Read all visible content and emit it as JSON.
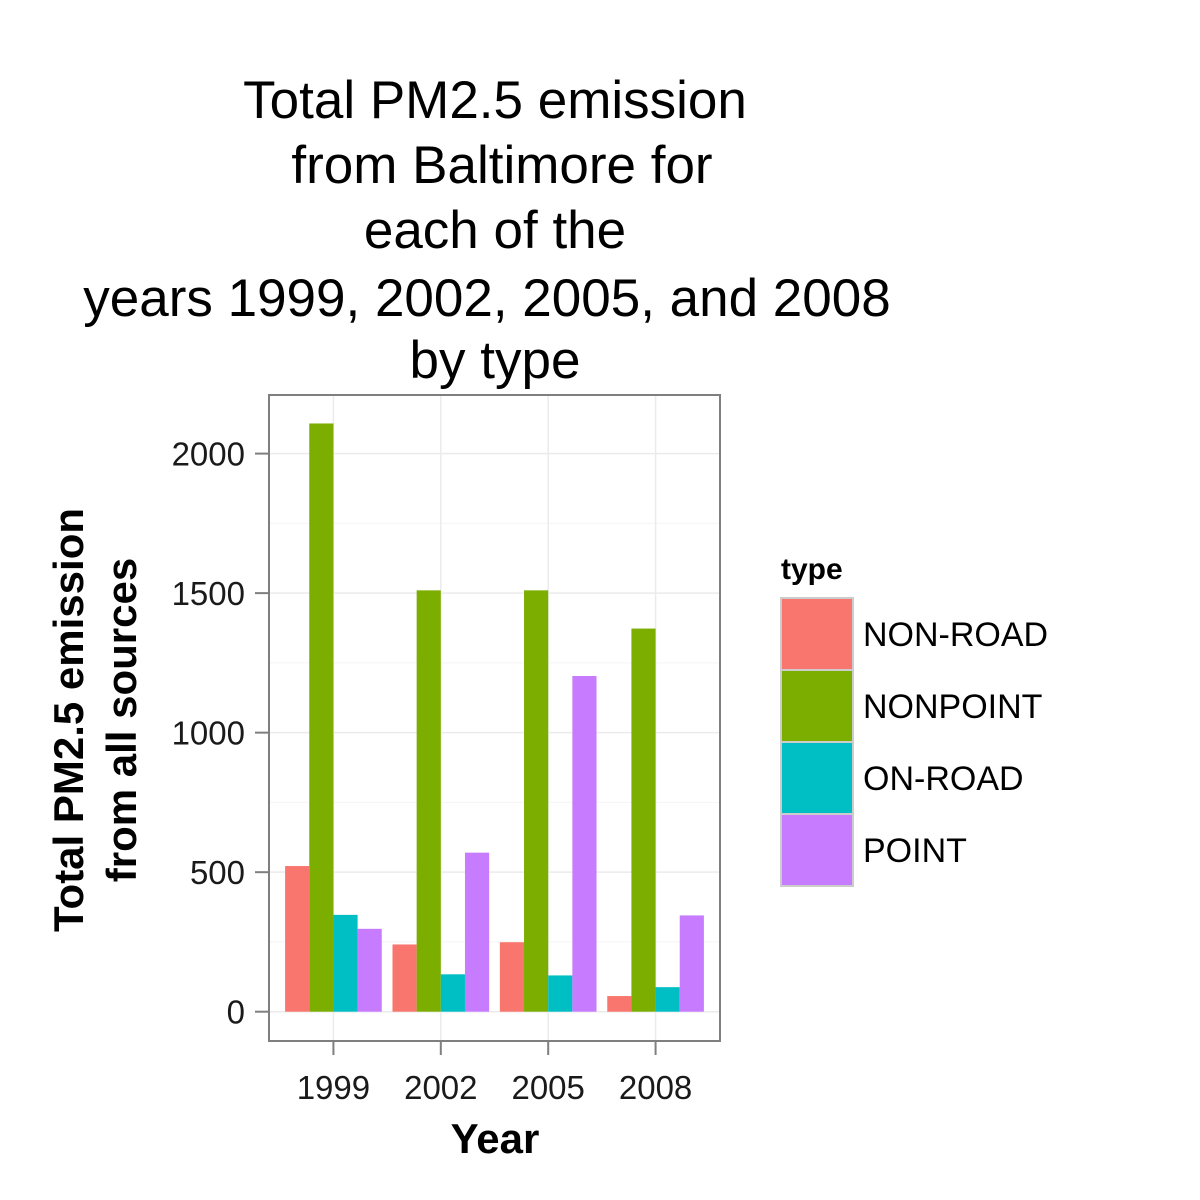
{
  "chart_data": {
    "type": "bar",
    "title_lines": [
      "Total PM2.5 emission",
      "from Baltimore for",
      "each of the",
      "years 1999, 2002, 2005, and 2008",
      "by type"
    ],
    "xlabel": "Year",
    "ylabel_lines": [
      "Total PM2.5 emission",
      "from all sources"
    ],
    "categories": [
      "1999",
      "2002",
      "2005",
      "2008"
    ],
    "yticks": [
      0,
      500,
      1000,
      1500,
      2000
    ],
    "ytick_labels": [
      "0",
      "500",
      "1000",
      "1500",
      "2000"
    ],
    "ylim": [
      -105,
      2210
    ],
    "grid": true,
    "legend_title": "type",
    "legend_position": "right",
    "series": [
      {
        "name": "NON-ROAD",
        "color": "#F8766D",
        "values": [
          522,
          241,
          249,
          56
        ]
      },
      {
        "name": "NONPOINT",
        "color": "#7CAE00",
        "values": [
          2108,
          1510,
          1510,
          1373
        ]
      },
      {
        "name": "ON-ROAD",
        "color": "#00BFC4",
        "values": [
          347,
          134,
          130,
          88
        ]
      },
      {
        "name": "POINT",
        "color": "#C77CFF",
        "values": [
          297,
          570,
          1203,
          345
        ]
      }
    ]
  }
}
